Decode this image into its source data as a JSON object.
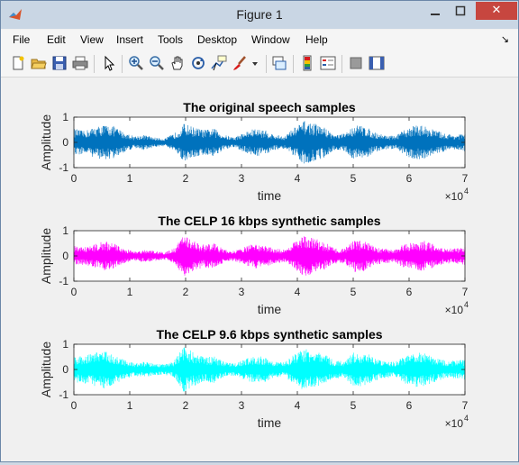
{
  "window": {
    "title": "Figure 1",
    "close_glyph": "✕"
  },
  "menu": [
    "File",
    "Edit",
    "View",
    "Insert",
    "Tools",
    "Desktop",
    "Window",
    "Help"
  ],
  "menu_overflow_glyph": "↘",
  "toolbar": {
    "icons": [
      "new-figure-icon",
      "open-file-icon",
      "save-icon",
      "print-icon",
      "pointer-icon",
      "zoom-in-icon",
      "zoom-out-icon",
      "pan-icon",
      "rotate-3d-icon",
      "data-cursor-icon",
      "brush-icon",
      "brush-dropdown-icon",
      "link-plot-icon",
      "colorbar-icon",
      "legend-icon",
      "hide-plot-tools-icon",
      "show-plot-tools-icon"
    ]
  },
  "chart_data": [
    {
      "type": "line",
      "title": "The original speech samples",
      "xlabel": "time",
      "ylabel": "Amplitude",
      "xlim": [
        0,
        70000
      ],
      "ylim": [
        -1,
        1
      ],
      "x_exponent_label": "×10",
      "x_exponent": "4",
      "xticks": [
        "0",
        "1",
        "2",
        "3",
        "4",
        "5",
        "6",
        "7"
      ],
      "yticks": [
        "1",
        "0",
        "-1"
      ],
      "color": "#0072bd",
      "series": [
        {
          "values": [
            0.55,
            0.45,
            0.6,
            0.7,
            0.65,
            0.4,
            0.25,
            0.3,
            0.2,
            0.15,
            0.35,
            0.75,
            0.6,
            0.5,
            0.55,
            0.3,
            0.2,
            0.4,
            0.55,
            0.5,
            0.3,
            0.25,
            0.6,
            0.85,
            0.75,
            0.6,
            0.3,
            0.35,
            0.7,
            0.65,
            0.4,
            0.3,
            0.25,
            0.5,
            0.7,
            0.65,
            0.5,
            0.35,
            0.3,
            0.35
          ]
        }
      ]
    },
    {
      "type": "line",
      "title": "The CELP 16 kbps synthetic samples",
      "xlabel": "time",
      "ylabel": "Amplitude",
      "xlim": [
        0,
        70000
      ],
      "ylim": [
        -1,
        1
      ],
      "x_exponent_label": "×10",
      "x_exponent": "4",
      "xticks": [
        "0",
        "1",
        "2",
        "3",
        "4",
        "5",
        "6",
        "7"
      ],
      "yticks": [
        "1",
        "0",
        "-1"
      ],
      "color": "#ff00ff",
      "series": [
        {
          "values": [
            0.4,
            0.35,
            0.45,
            0.6,
            0.5,
            0.3,
            0.2,
            0.25,
            0.2,
            0.15,
            0.3,
            0.9,
            0.6,
            0.45,
            0.5,
            0.25,
            0.2,
            0.35,
            0.5,
            0.45,
            0.3,
            0.25,
            0.55,
            0.8,
            0.7,
            0.55,
            0.3,
            0.3,
            0.65,
            0.6,
            0.35,
            0.3,
            0.25,
            0.5,
            0.55,
            0.6,
            0.45,
            0.3,
            0.3,
            0.35
          ]
        }
      ]
    },
    {
      "type": "line",
      "title": "The CELP 9.6 kbps synthetic samples",
      "xlabel": "time",
      "ylabel": "Amplitude",
      "xlim": [
        0,
        70000
      ],
      "ylim": [
        -1,
        1
      ],
      "x_exponent_label": "×10",
      "x_exponent": "4",
      "xticks": [
        "0",
        "1",
        "2",
        "3",
        "4",
        "5",
        "6",
        "7"
      ],
      "yticks": [
        "1",
        "0",
        "-1"
      ],
      "color": "#00ffff",
      "series": [
        {
          "values": [
            0.5,
            0.55,
            0.65,
            0.75,
            0.6,
            0.4,
            0.25,
            0.3,
            0.25,
            0.2,
            0.35,
            0.95,
            0.65,
            0.5,
            0.55,
            0.3,
            0.25,
            0.4,
            0.55,
            0.5,
            0.3,
            0.3,
            0.6,
            0.85,
            0.75,
            0.6,
            0.35,
            0.35,
            0.7,
            0.7,
            0.45,
            0.35,
            0.3,
            0.55,
            0.7,
            0.65,
            0.5,
            0.35,
            0.35,
            0.4
          ]
        }
      ]
    }
  ]
}
